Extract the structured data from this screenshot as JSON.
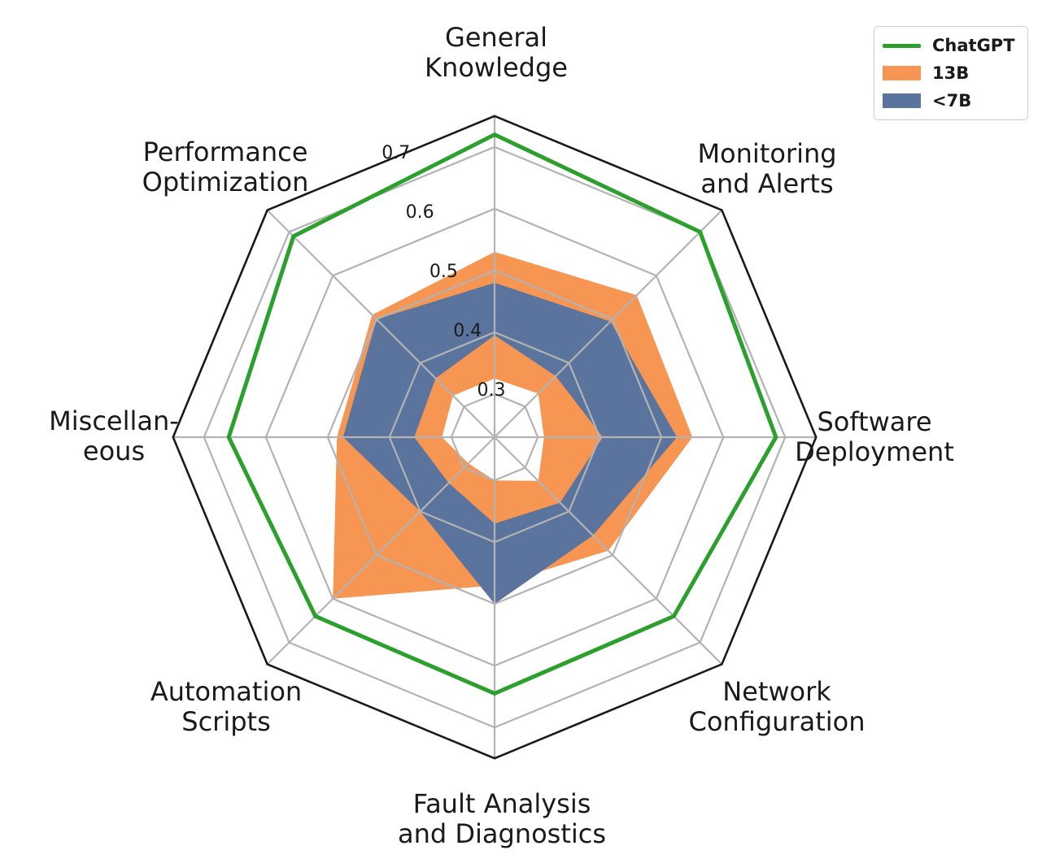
{
  "figure": {
    "background": "#ffffff",
    "text_color": "#1a1a1a",
    "grid_color": "#b3b3b3",
    "frame_color": "#1a1a1a"
  },
  "legend": {
    "items": [
      {
        "label": "ChatGPT",
        "swatch": "line",
        "color": "#2ca02c"
      },
      {
        "label": "13B",
        "swatch": "patch",
        "color": "#f79552"
      },
      {
        "label": "<7B",
        "swatch": "patch",
        "color": "#5b749e"
      }
    ]
  },
  "chart_data": {
    "type": "radar",
    "title": "",
    "categories": [
      "General Knowledge",
      "Monitoring and Alerts",
      "Software Deployment",
      "Network Configuration",
      "Fault Analysis and Diagnostics",
      "Automation Scripts",
      "Miscellaneous",
      "Performance Optimization"
    ],
    "category_display_lines": [
      [
        "General",
        "Knowledge"
      ],
      [
        "Monitoring",
        "and Alerts"
      ],
      [
        "Software",
        "Deployment"
      ],
      [
        "Network",
        "Configuration"
      ],
      [
        "Fault Analysis",
        "and Diagnostics"
      ],
      [
        "Automation",
        "Scripts"
      ],
      [
        "Miscellan-",
        "eous"
      ],
      [
        "Performance",
        "Optimization"
      ]
    ],
    "radial_ticks": [
      0.3,
      0.4,
      0.5,
      0.6,
      0.7
    ],
    "radial_tick_labels": [
      "0.3",
      "0.4",
      "0.5",
      "0.6",
      "0.7"
    ],
    "r_center": 0.23,
    "r_outer": 0.75,
    "grid": true,
    "legend_position": "upper right",
    "series": [
      {
        "name": "ChatGPT",
        "type": "line",
        "color": "#2ca02c",
        "values": [
          0.72,
          0.7,
          0.685,
          0.64,
          0.645,
          0.64,
          0.66,
          0.69
        ]
      },
      {
        "name": "13B",
        "type": "band",
        "color": "#f79552",
        "upper": [
          0.53,
          0.555,
          0.55,
          0.49,
          0.47,
          0.6,
          0.485,
          0.51
        ],
        "lower": [
          0.325,
          0.33,
          0.31,
          0.33,
          0.3,
          0.29,
          0.315,
          0.325
        ]
      },
      {
        "name": "<7B",
        "type": "band",
        "color": "#5b749e",
        "upper": [
          0.48,
          0.495,
          0.525,
          0.455,
          0.5,
          0.4,
          0.475,
          0.5
        ],
        "lower": [
          0.395,
          0.37,
          0.405,
          0.38,
          0.37,
          0.335,
          0.36,
          0.365
        ]
      }
    ]
  }
}
